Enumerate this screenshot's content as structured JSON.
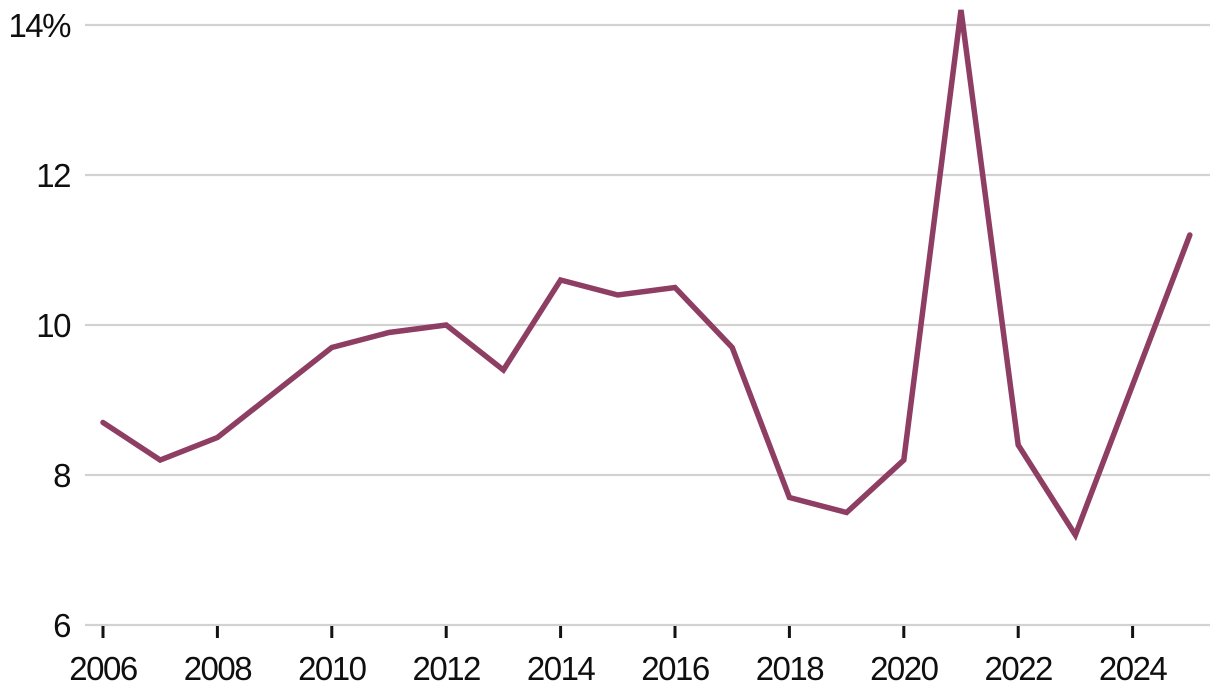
{
  "chart_data": {
    "type": "line",
    "title": "",
    "xlabel": "",
    "ylabel": "",
    "unit": "%",
    "x": [
      2006,
      2007,
      2008,
      2009,
      2010,
      2011,
      2012,
      2013,
      2014,
      2015,
      2016,
      2017,
      2018,
      2019,
      2020,
      2021,
      2022,
      2023,
      2024,
      2025
    ],
    "series": [
      {
        "name": "",
        "color": "#8e3d63",
        "values": [
          8.7,
          8.2,
          8.5,
          9.1,
          9.7,
          9.9,
          10.0,
          9.4,
          10.6,
          10.4,
          10.5,
          9.7,
          7.7,
          7.5,
          8.2,
          14.2,
          8.4,
          7.2,
          9.2,
          11.2
        ]
      }
    ],
    "ylim": [
      6,
      14.33
    ],
    "yticks": [
      6,
      8,
      10,
      12,
      14
    ],
    "ytick_labels": [
      "6",
      "8",
      "10",
      "12",
      "14%"
    ],
    "xticks": [
      2006,
      2008,
      2010,
      2012,
      2014,
      2016,
      2018,
      2020,
      2022,
      2024
    ],
    "xtick_labels": [
      "2006",
      "2008",
      "2010",
      "2012",
      "2014",
      "2016",
      "2018",
      "2020",
      "2022",
      "2024"
    ],
    "grid": "horizontal",
    "legend": "none",
    "colors": {
      "line": "#8e3d63",
      "gridline": "#d2d2d2",
      "axis_line": "#d2d2d2",
      "tick_mark": "#121212",
      "label_text": "#0f0f0f",
      "background": "#ffffff"
    }
  }
}
